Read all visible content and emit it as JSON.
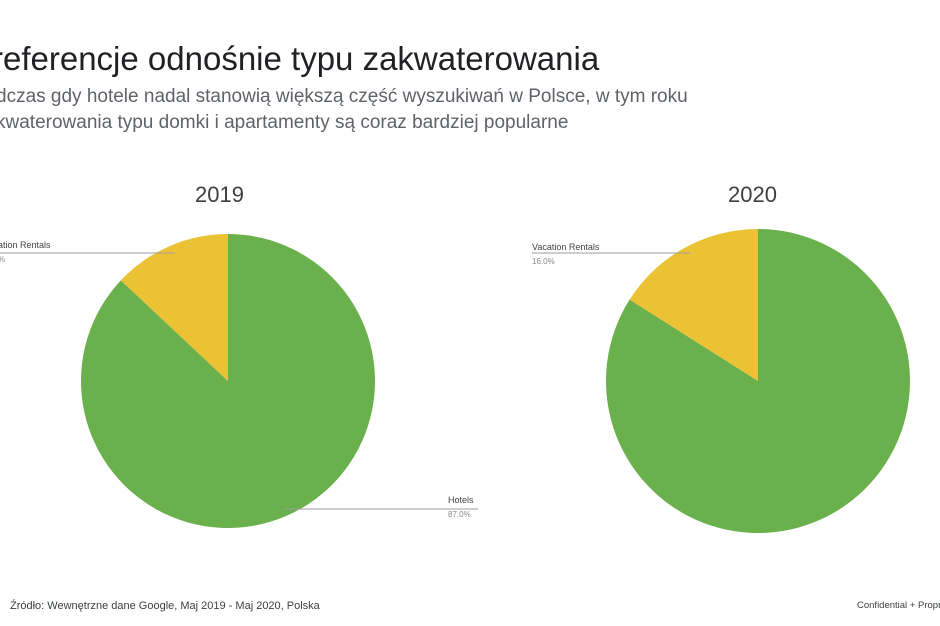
{
  "header": {
    "title": "referencje odnośnie typu zakwaterowania",
    "subtitle_line1": "dczas gdy hotele nadal stanowią większą część wyszukiwań w Polsce, w tym roku",
    "subtitle_line2": "kwaterowania typu domki i apartamenty są coraz bardziej popularne"
  },
  "colors": {
    "hotels": "#6ab04c",
    "vacation_rentals": "#ebc234"
  },
  "chart_data": [
    {
      "type": "pie",
      "title": "2019",
      "slices": [
        {
          "label": "Hotels",
          "value": 87.0,
          "pct_label": "87.0%",
          "color": "#6ab04c"
        },
        {
          "label": "ation Rentals",
          "value": 13.0,
          "pct_label": "%",
          "color": "#ebc234"
        }
      ]
    },
    {
      "type": "pie",
      "title": "2020",
      "slices": [
        {
          "label": "",
          "value": 84.0,
          "pct_label": "",
          "color": "#6ab04c"
        },
        {
          "label": "Vacation Rentals",
          "value": 16.0,
          "pct_label": "16.0%",
          "color": "#ebc234"
        }
      ]
    }
  ],
  "footer": {
    "source": "Źródło: Wewnętrzne dane Google, Maj 2019 - Maj  2020, Polska",
    "confidential": "Confidential + Propr"
  }
}
